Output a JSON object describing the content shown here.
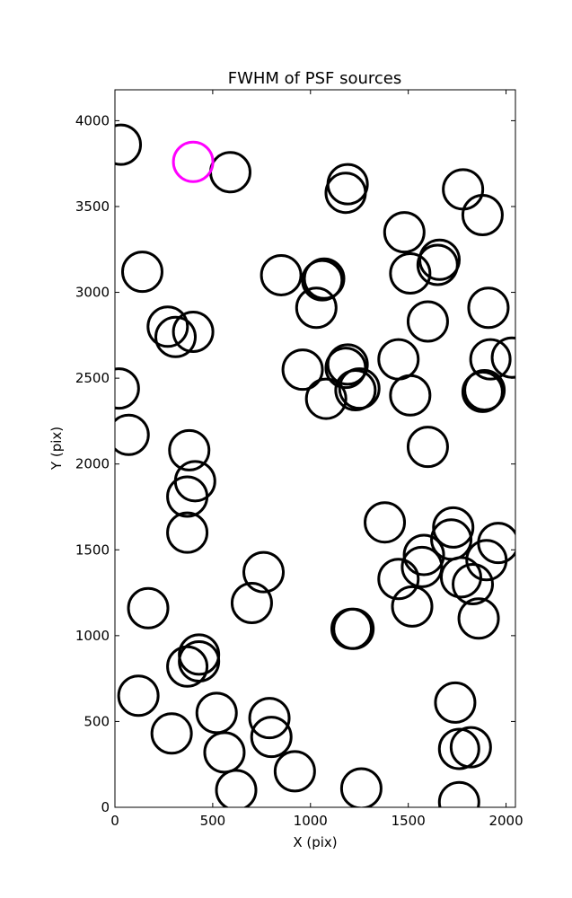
{
  "chart_data": {
    "type": "scatter",
    "title": "FWHM of PSF sources",
    "xlabel": "X (pix)",
    "ylabel": "Y (pix)",
    "xlim": [
      0,
      2048
    ],
    "ylim": [
      0,
      4180
    ],
    "xticks": [
      0,
      500,
      1000,
      1500,
      2000
    ],
    "yticks": [
      0,
      500,
      1000,
      1500,
      2000,
      2500,
      3000,
      3500,
      4000
    ],
    "grid": false,
    "marker": "hollow-circle",
    "series": [
      {
        "color": "#000000",
        "points": [
          [
            30,
            3860
          ],
          [
            590,
            3700
          ],
          [
            1190,
            3630
          ],
          [
            1180,
            3580
          ],
          [
            1780,
            3600
          ],
          [
            1880,
            3450
          ],
          [
            1480,
            3350
          ],
          [
            1660,
            3190
          ],
          [
            1650,
            3160
          ],
          [
            140,
            3120
          ],
          [
            1510,
            3110
          ],
          [
            850,
            3100
          ],
          [
            1070,
            3080
          ],
          [
            1060,
            3070
          ],
          [
            1030,
            2910
          ],
          [
            1910,
            2910
          ],
          [
            1600,
            2830
          ],
          [
            270,
            2800
          ],
          [
            310,
            2740
          ],
          [
            400,
            2770
          ],
          [
            1450,
            2610
          ],
          [
            1920,
            2610
          ],
          [
            2030,
            2620
          ],
          [
            1190,
            2580
          ],
          [
            1180,
            2560
          ],
          [
            960,
            2550
          ],
          [
            1250,
            2440
          ],
          [
            1230,
            2430
          ],
          [
            20,
            2440
          ],
          [
            1890,
            2430
          ],
          [
            1880,
            2420
          ],
          [
            1510,
            2400
          ],
          [
            1080,
            2380
          ],
          [
            70,
            2170
          ],
          [
            1600,
            2100
          ],
          [
            380,
            2080
          ],
          [
            410,
            1900
          ],
          [
            370,
            1810
          ],
          [
            1380,
            1660
          ],
          [
            1730,
            1630
          ],
          [
            1720,
            1560
          ],
          [
            1960,
            1540
          ],
          [
            1580,
            1470
          ],
          [
            1570,
            1400
          ],
          [
            1900,
            1440
          ],
          [
            370,
            1600
          ],
          [
            760,
            1370
          ],
          [
            1450,
            1330
          ],
          [
            1770,
            1340
          ],
          [
            1830,
            1300
          ],
          [
            700,
            1190
          ],
          [
            170,
            1160
          ],
          [
            1520,
            1170
          ],
          [
            1860,
            1100
          ],
          [
            1210,
            1040
          ],
          [
            1220,
            1040
          ],
          [
            430,
            890
          ],
          [
            430,
            850
          ],
          [
            370,
            820
          ],
          [
            120,
            650
          ],
          [
            1740,
            610
          ],
          [
            520,
            550
          ],
          [
            790,
            520
          ],
          [
            290,
            430
          ],
          [
            800,
            410
          ],
          [
            560,
            320
          ],
          [
            920,
            210
          ],
          [
            1760,
            340
          ],
          [
            1820,
            350
          ],
          [
            620,
            100
          ],
          [
            1260,
            110
          ],
          [
            1760,
            30
          ]
        ]
      },
      {
        "color": "#ff00ff",
        "points": [
          [
            400,
            3760
          ]
        ]
      }
    ]
  }
}
